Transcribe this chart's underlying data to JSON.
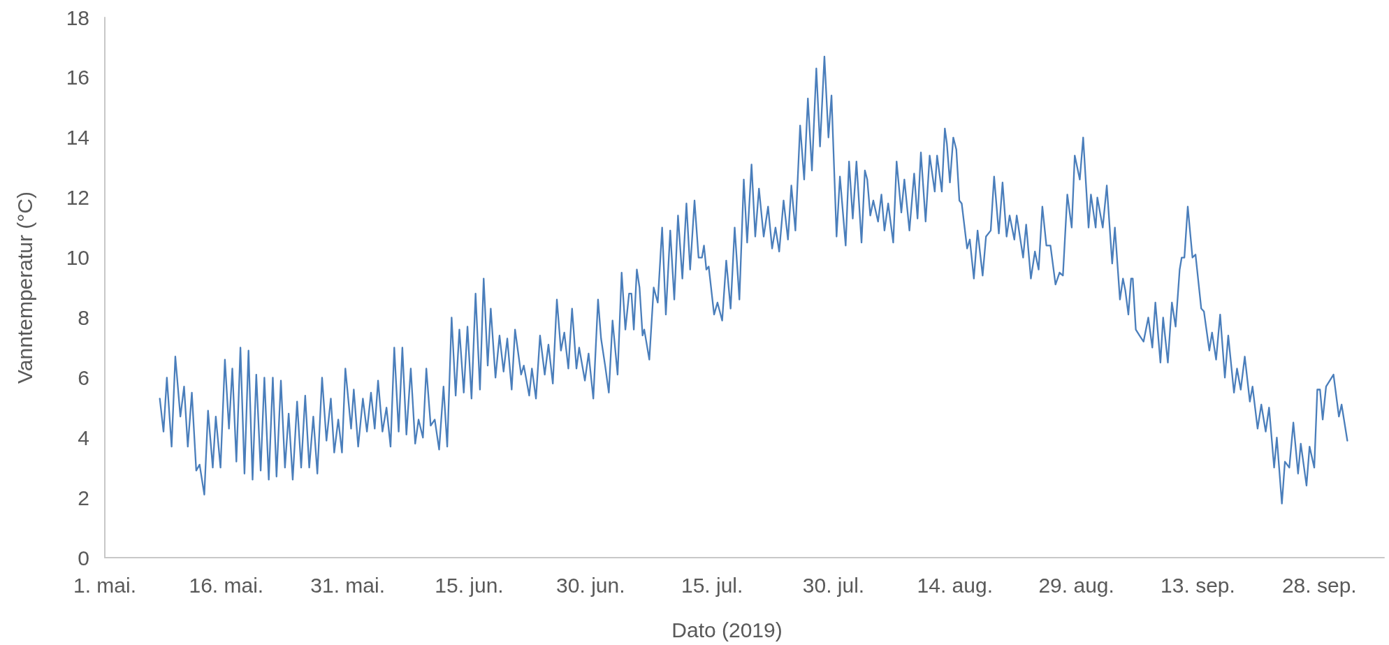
{
  "chart_data": {
    "type": "line",
    "xlabel": "Dato (2019)",
    "ylabel": "Vanntemperatur (°C)",
    "xlim": [
      "2019-05-01",
      "2019-10-06"
    ],
    "xticks": [
      {
        "value": "2019-05-01",
        "label": "1. mai."
      },
      {
        "value": "2019-05-16",
        "label": "16. mai."
      },
      {
        "value": "2019-05-31",
        "label": "31. mai."
      },
      {
        "value": "2019-06-15",
        "label": "15. jun."
      },
      {
        "value": "2019-06-30",
        "label": "30. jun."
      },
      {
        "value": "2019-07-15",
        "label": "15. jul."
      },
      {
        "value": "2019-07-30",
        "label": "30. jul."
      },
      {
        "value": "2019-08-14",
        "label": "14. aug."
      },
      {
        "value": "2019-08-29",
        "label": "29. aug."
      },
      {
        "value": "2019-09-13",
        "label": "13. sep."
      },
      {
        "value": "2019-09-28",
        "label": "28. sep."
      }
    ],
    "ylim": [
      0,
      18
    ],
    "yticks": [
      0,
      2,
      4,
      6,
      8,
      10,
      12,
      14,
      16,
      18
    ],
    "grid": false,
    "marker": "none",
    "line_style": "solid",
    "x": [
      "2019-05-07T19:00",
      "2019-05-08T06:00",
      "2019-05-08T16:00",
      "2019-05-09T06:00",
      "2019-05-09T17:00",
      "2019-05-10T08:00",
      "2019-05-10T19:00",
      "2019-05-11T06:00",
      "2019-05-11T18:00",
      "2019-05-12T07:00",
      "2019-05-12T17:00",
      "2019-05-13T07:00",
      "2019-05-13T18:00",
      "2019-05-14T08:00",
      "2019-05-14T17:00",
      "2019-05-15T07:00",
      "2019-05-15T20:00",
      "2019-05-16T08:00",
      "2019-05-16T18:00",
      "2019-05-17T06:00",
      "2019-05-17T18:00",
      "2019-05-18T06:00",
      "2019-05-18T18:00",
      "2019-05-19T06:00",
      "2019-05-19T17:00",
      "2019-05-20T06:00",
      "2019-05-20T17:00",
      "2019-05-21T06:00",
      "2019-05-21T18:00",
      "2019-05-22T05:00",
      "2019-05-22T18:00",
      "2019-05-23T06:00",
      "2019-05-23T17:00",
      "2019-05-24T05:00",
      "2019-05-24T18:00",
      "2019-05-25T06:00",
      "2019-05-25T18:00",
      "2019-05-26T06:00",
      "2019-05-26T18:00",
      "2019-05-27T06:00",
      "2019-05-27T20:00",
      "2019-05-28T09:00",
      "2019-05-28T22:00",
      "2019-05-29T08:00",
      "2019-05-29T20:00",
      "2019-05-30T07:00",
      "2019-05-30T17:00",
      "2019-05-31T10:00",
      "2019-05-31T18:00",
      "2019-06-01T07:00",
      "2019-06-01T21:00",
      "2019-06-02T09:00",
      "2019-06-02T21:00",
      "2019-06-03T08:00",
      "2019-06-03T18:00",
      "2019-06-04T07:00",
      "2019-06-04T19:00",
      "2019-06-05T07:00",
      "2019-06-05T18:00",
      "2019-06-06T07:00",
      "2019-06-06T18:00",
      "2019-06-07T06:00",
      "2019-06-07T19:00",
      "2019-06-08T08:00",
      "2019-06-08T18:00",
      "2019-06-09T07:00",
      "2019-06-09T17:00",
      "2019-06-10T06:00",
      "2019-06-10T18:00",
      "2019-06-11T07:00",
      "2019-06-11T20:00",
      "2019-06-12T07:00",
      "2019-06-12T20:00",
      "2019-06-13T08:00",
      "2019-06-13T19:00",
      "2019-06-14T08:00",
      "2019-06-14T19:00",
      "2019-06-15T07:00",
      "2019-06-15T19:00",
      "2019-06-16T08:00",
      "2019-06-16T19:00",
      "2019-06-17T07:00",
      "2019-06-17T16:00",
      "2019-06-18T06:00",
      "2019-06-18T18:00",
      "2019-06-19T06:00",
      "2019-06-19T17:00",
      "2019-06-20T06:00",
      "2019-06-20T16:00",
      "2019-06-21T10:00",
      "2019-06-21T18:00",
      "2019-06-22T10:00",
      "2019-06-22T18:00",
      "2019-06-23T06:00",
      "2019-06-23T18:00",
      "2019-06-24T08:00",
      "2019-06-24T19:00",
      "2019-06-25T08:00",
      "2019-06-25T20:00",
      "2019-06-26T08:00",
      "2019-06-26T18:00",
      "2019-06-27T06:00",
      "2019-06-27T17:00",
      "2019-06-28T06:00",
      "2019-06-28T14:00",
      "2019-06-29T07:00",
      "2019-06-29T18:00",
      "2019-06-30T08:00",
      "2019-06-30T22:00",
      "2019-07-01T07:00",
      "2019-07-01T19:00",
      "2019-07-02T06:00",
      "2019-07-02T17:00",
      "2019-07-03T08:00",
      "2019-07-03T20:00",
      "2019-07-04T07:00",
      "2019-07-04T18:00",
      "2019-07-05T01:00",
      "2019-07-05T08:00",
      "2019-07-05T17:00",
      "2019-07-06T01:00",
      "2019-07-06T10:00",
      "2019-07-06T15:00",
      "2019-07-07T06:00",
      "2019-07-07T19:00",
      "2019-07-08T07:00",
      "2019-07-08T20:00",
      "2019-07-09T07:00",
      "2019-07-09T20:00",
      "2019-07-10T08:00",
      "2019-07-10T19:00",
      "2019-07-11T08:00",
      "2019-07-11T20:00",
      "2019-07-12T07:00",
      "2019-07-12T20:00",
      "2019-07-13T08:00",
      "2019-07-13T18:00",
      "2019-07-14T00:00",
      "2019-07-14T07:00",
      "2019-07-14T14:00",
      "2019-07-15T06:00",
      "2019-07-15T16:00",
      "2019-07-16T06:00",
      "2019-07-16T18:00",
      "2019-07-17T07:00",
      "2019-07-17T19:00",
      "2019-07-18T09:00",
      "2019-07-18T22:00",
      "2019-07-19T08:00",
      "2019-07-19T21:00",
      "2019-07-20T08:00",
      "2019-07-20T19:00",
      "2019-07-21T09:00",
      "2019-07-21T22:00",
      "2019-07-22T10:00",
      "2019-07-22T20:00",
      "2019-07-23T07:00",
      "2019-07-23T20:00",
      "2019-07-24T09:00",
      "2019-07-24T19:00",
      "2019-07-25T07:00",
      "2019-07-25T21:00",
      "2019-07-26T09:00",
      "2019-07-26T20:00",
      "2019-07-27T08:00",
      "2019-07-27T21:00",
      "2019-07-28T08:00",
      "2019-07-28T21:00",
      "2019-07-29T09:00",
      "2019-07-29T18:00",
      "2019-07-30T09:00",
      "2019-07-30T19:00",
      "2019-07-31T12:00",
      "2019-07-31T22:00",
      "2019-08-01T09:00",
      "2019-08-01T20:00",
      "2019-08-02T11:00",
      "2019-08-02T21:00",
      "2019-08-03T04:00",
      "2019-08-03T13:00",
      "2019-08-03T22:00",
      "2019-08-04T12:00",
      "2019-08-04T22:00",
      "2019-08-05T07:00",
      "2019-08-05T18:00",
      "2019-08-06T09:00",
      "2019-08-06T19:00",
      "2019-08-07T09:00",
      "2019-08-07T18:00",
      "2019-08-08T09:00",
      "2019-08-08T23:00",
      "2019-08-09T09:00",
      "2019-08-09T19:00",
      "2019-08-10T09:00",
      "2019-08-10T21:00",
      "2019-08-11T12:00",
      "2019-08-11T19:00",
      "2019-08-12T09:00",
      "2019-08-12T18:00",
      "2019-08-13T00:00",
      "2019-08-13T09:00",
      "2019-08-13T19:00",
      "2019-08-14T04:00",
      "2019-08-14T13:00",
      "2019-08-14T20:00",
      "2019-08-15T12:00",
      "2019-08-15T20:00",
      "2019-08-16T08:00",
      "2019-08-16T19:00",
      "2019-08-17T10:00",
      "2019-08-17T20:00",
      "2019-08-18T10:00",
      "2019-08-18T20:00",
      "2019-08-19T10:00",
      "2019-08-19T21:00",
      "2019-08-20T09:00",
      "2019-08-20T18:00",
      "2019-08-21T08:00",
      "2019-08-21T15:00",
      "2019-08-22T10:00",
      "2019-08-22T19:00",
      "2019-08-23T09:00",
      "2019-08-23T21:00",
      "2019-08-24T08:00",
      "2019-08-24T19:00",
      "2019-08-25T07:00",
      "2019-08-25T19:00",
      "2019-08-26T10:00",
      "2019-08-26T22:00",
      "2019-08-27T08:00",
      "2019-08-27T21:00",
      "2019-08-28T10:00",
      "2019-08-28T19:00",
      "2019-08-29T10:00",
      "2019-08-29T20:00",
      "2019-08-30T12:00",
      "2019-08-30T19:00",
      "2019-08-31T09:00",
      "2019-08-31T14:00",
      "2019-09-01T06:00",
      "2019-09-01T18:00",
      "2019-09-02T10:00",
      "2019-09-02T18:00",
      "2019-09-03T09:00",
      "2019-09-03T18:00",
      "2019-09-04T01:00",
      "2019-09-04T10:00",
      "2019-09-04T18:00",
      "2019-09-04T23:00",
      "2019-09-05T08:00",
      "2019-09-05T19:00",
      "2019-09-06T07:00",
      "2019-09-06T21:00",
      "2019-09-07T09:00",
      "2019-09-07T18:00",
      "2019-09-08T09:00",
      "2019-09-08T17:00",
      "2019-09-09T07:00",
      "2019-09-09T19:00",
      "2019-09-10T06:00",
      "2019-09-10T18:00",
      "2019-09-11T00:00",
      "2019-09-11T08:00",
      "2019-09-11T18:00",
      "2019-09-12T08:00",
      "2019-09-12T17:00",
      "2019-09-13T10:00",
      "2019-09-13T18:00",
      "2019-09-14T10:00",
      "2019-09-14T18:00",
      "2019-09-15T06:00",
      "2019-09-15T18:00",
      "2019-09-16T08:00",
      "2019-09-16T18:00",
      "2019-09-17T11:00",
      "2019-09-17T20:00",
      "2019-09-18T07:00",
      "2019-09-18T19:00",
      "2019-09-19T10:00",
      "2019-09-19T18:00",
      "2019-09-20T09:00",
      "2019-09-20T20:00",
      "2019-09-21T09:00",
      "2019-09-21T19:00",
      "2019-09-22T10:00",
      "2019-09-22T18:00",
      "2019-09-23T09:00",
      "2019-09-23T18:00",
      "2019-09-24T07:00",
      "2019-09-24T19:00",
      "2019-09-25T09:00",
      "2019-09-25T17:00",
      "2019-09-26T10:00",
      "2019-09-26T19:00",
      "2019-09-27T09:00",
      "2019-09-27T18:00",
      "2019-09-28T02:00",
      "2019-09-28T10:00",
      "2019-09-28T20:00",
      "2019-09-29T07:00",
      "2019-09-29T18:00",
      "2019-09-30T10:00",
      "2019-09-30T18:00",
      "2019-10-01T11:00"
    ],
    "series": [
      {
        "color": "#4a7ebb",
        "values": [
          5.3,
          4.2,
          6.0,
          3.7,
          6.7,
          4.7,
          5.7,
          3.7,
          5.5,
          2.9,
          3.1,
          2.1,
          4.9,
          3.0,
          4.7,
          3.0,
          6.6,
          4.3,
          6.3,
          3.2,
          7.0,
          2.8,
          6.9,
          2.6,
          6.1,
          2.9,
          6.0,
          2.6,
          6.0,
          2.7,
          5.9,
          3.0,
          4.8,
          2.6,
          5.2,
          3.0,
          5.4,
          3.0,
          4.7,
          2.8,
          6.0,
          3.9,
          5.3,
          3.5,
          4.6,
          3.5,
          6.3,
          4.3,
          5.6,
          3.7,
          5.3,
          4.2,
          5.5,
          4.3,
          5.9,
          4.2,
          5.0,
          3.7,
          7.0,
          4.2,
          7.0,
          4.1,
          6.3,
          3.8,
          4.6,
          4.0,
          6.3,
          4.4,
          4.6,
          3.6,
          5.7,
          3.7,
          8.0,
          5.4,
          7.6,
          5.5,
          7.7,
          5.3,
          8.8,
          5.6,
          9.3,
          6.4,
          8.3,
          6.0,
          7.4,
          6.2,
          7.3,
          5.6,
          7.6,
          6.1,
          6.4,
          5.4,
          6.3,
          5.3,
          7.4,
          6.1,
          7.1,
          5.8,
          8.6,
          6.9,
          7.5,
          6.3,
          8.3,
          6.3,
          7.0,
          5.9,
          6.8,
          5.3,
          8.6,
          7.3,
          6.4,
          5.5,
          7.9,
          6.1,
          9.5,
          7.6,
          8.8,
          8.8,
          7.6,
          9.6,
          9.0,
          7.4,
          7.6,
          6.6,
          9.0,
          8.5,
          11.0,
          8.1,
          10.9,
          8.6,
          11.4,
          9.3,
          11.8,
          9.6,
          11.9,
          10.0,
          10.0,
          10.4,
          9.6,
          9.7,
          8.1,
          8.5,
          7.9,
          9.9,
          8.3,
          11.0,
          8.6,
          12.6,
          10.5,
          13.1,
          10.7,
          12.3,
          10.7,
          11.7,
          10.3,
          11.0,
          10.2,
          11.9,
          10.6,
          12.4,
          10.9,
          14.4,
          12.6,
          15.3,
          12.9,
          16.3,
          13.7,
          16.7,
          14.0,
          15.4,
          10.7,
          12.7,
          10.4,
          13.2,
          11.3,
          13.2,
          10.5,
          12.9,
          12.6,
          11.4,
          11.9,
          11.2,
          12.1,
          10.9,
          11.8,
          10.5,
          13.2,
          11.5,
          12.6,
          10.9,
          12.8,
          11.3,
          13.5,
          11.2,
          13.4,
          12.2,
          13.4,
          12.2,
          14.3,
          13.8,
          12.5,
          14.0,
          13.6,
          11.9,
          11.8,
          10.3,
          10.6,
          9.3,
          10.9,
          9.4,
          10.7,
          10.9,
          12.7,
          10.8,
          12.5,
          10.7,
          11.4,
          10.6,
          11.4,
          10.0,
          11.1,
          9.3,
          10.2,
          9.6,
          11.7,
          10.4,
          10.4,
          9.1,
          9.5,
          9.4,
          12.1,
          11.0,
          13.4,
          12.6,
          14.0,
          11.0,
          12.1,
          11.0,
          12.0,
          11.0,
          12.4,
          9.8,
          11.0,
          8.6,
          9.3,
          8.9,
          8.1,
          9.3,
          9.3,
          7.6,
          7.4,
          7.2,
          8.0,
          7.0,
          8.5,
          6.5,
          8.0,
          6.5,
          8.5,
          7.7,
          9.6,
          10.0,
          10.0,
          11.7,
          10.0,
          10.1,
          8.3,
          8.2,
          6.9,
          7.5,
          6.6,
          8.1,
          6.0,
          7.4,
          5.5,
          6.3,
          5.6,
          6.7,
          5.2,
          5.7,
          4.3,
          5.1,
          4.2,
          5.0,
          3.0,
          4.0,
          1.8,
          3.2,
          3.0,
          4.5,
          2.8,
          3.8,
          2.4,
          3.7,
          3.0,
          5.6,
          5.6,
          4.6,
          5.7,
          5.9,
          6.1,
          4.7,
          5.1,
          3.9
        ]
      }
    ]
  }
}
